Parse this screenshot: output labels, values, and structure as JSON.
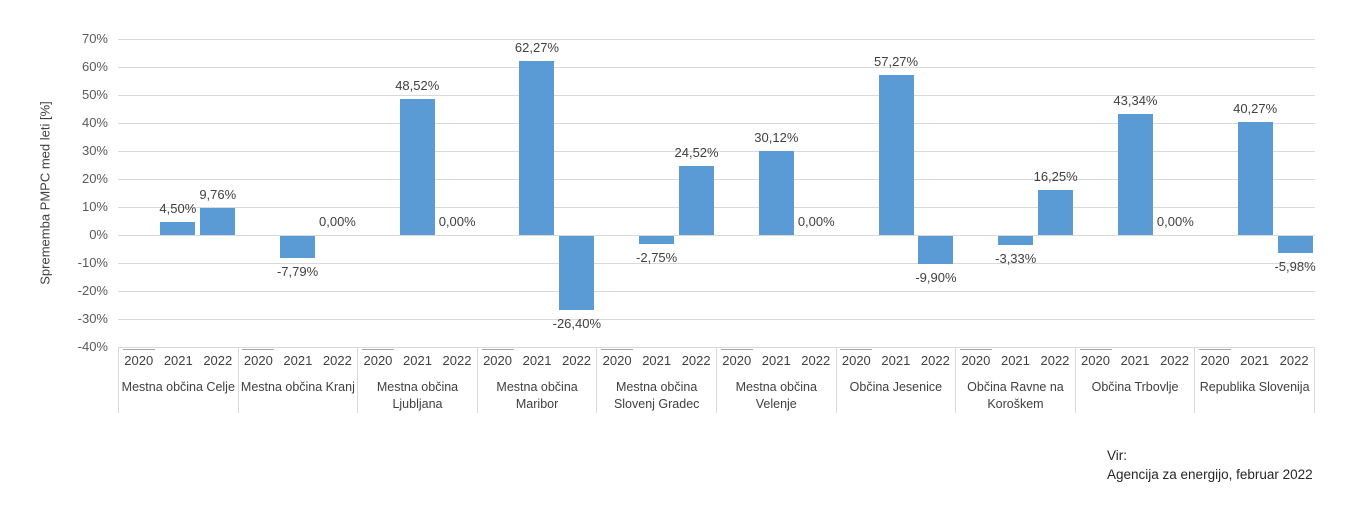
{
  "chart_data": {
    "type": "bar",
    "title": "",
    "ylabel": "Sprememba PMPC med leti [%]",
    "xlabel": "",
    "ylim": [
      -40,
      70
    ],
    "y_tick_step": 10,
    "y_ticks": [
      "70%",
      "60%",
      "50%",
      "40%",
      "30%",
      "20%",
      "10%",
      "0%",
      "-10%",
      "-20%",
      "-30%",
      "-40%"
    ],
    "grid": true,
    "legend": "none",
    "bar_color": "#5B9BD5",
    "categories": [
      "2020",
      "2021",
      "2022"
    ],
    "groups": [
      {
        "name": "Mestna občina Celje",
        "values": [
          null,
          4.5,
          9.76
        ],
        "labels": [
          "",
          "4,50%",
          "9,76%"
        ]
      },
      {
        "name": "Mestna občina Kranj",
        "values": [
          null,
          -7.79,
          0
        ],
        "labels": [
          "",
          "-7,79%",
          "0,00%"
        ]
      },
      {
        "name": "Mestna občina Ljubljana",
        "values": [
          null,
          48.52,
          0
        ],
        "labels": [
          "",
          "48,52%",
          "0,00%"
        ]
      },
      {
        "name": "Mestna občina Maribor",
        "values": [
          null,
          62.27,
          -26.4
        ],
        "labels": [
          "",
          "62,27%",
          "-26,40%"
        ]
      },
      {
        "name": "Mestna občina Slovenj Gradec",
        "values": [
          null,
          -2.75,
          24.52
        ],
        "labels": [
          "",
          "-2,75%",
          "24,52%"
        ]
      },
      {
        "name": "Mestna občina Velenje",
        "values": [
          null,
          30.12,
          0
        ],
        "labels": [
          "",
          "30,12%",
          "0,00%"
        ]
      },
      {
        "name": "Občina Jesenice",
        "values": [
          null,
          57.27,
          -9.9
        ],
        "labels": [
          "",
          "57,27%",
          "-9,90%"
        ]
      },
      {
        "name": "Občina Ravne na Koroškem",
        "values": [
          null,
          -3.33,
          16.25
        ],
        "labels": [
          "",
          "-3,33%",
          "16,25%"
        ]
      },
      {
        "name": "Občina Trbovlje",
        "values": [
          null,
          43.34,
          0
        ],
        "labels": [
          "",
          "43,34%",
          "0,00%"
        ]
      },
      {
        "name": "Republika Slovenija",
        "values": [
          null,
          40.27,
          -5.98
        ],
        "labels": [
          "",
          "40,27%",
          "-5,98%"
        ]
      }
    ]
  },
  "source": {
    "line1": "Vir:",
    "line2": "Agencija za energijo, februar 2022"
  },
  "colors": {
    "bar": "#5B9BD5",
    "gridline": "#D9D9D9",
    "separator": "#D9D9D9",
    "tick_mark": "#A6A6A6",
    "axis_text": "#595959",
    "label_text": "#404040",
    "source_text": "#262626",
    "background": "#FFFFFF"
  }
}
